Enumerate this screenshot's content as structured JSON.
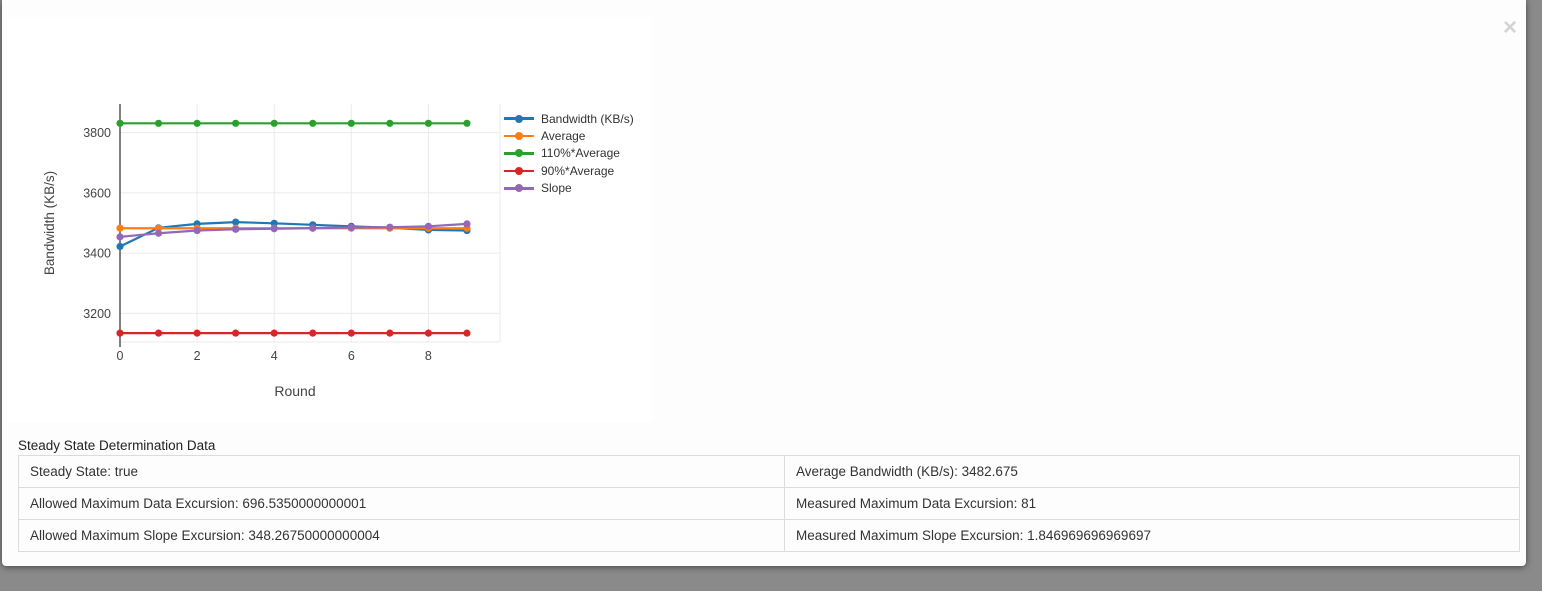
{
  "modal": {
    "close_icon": "×"
  },
  "chart_data": {
    "type": "line",
    "title": "",
    "xlabel": "Round",
    "ylabel": "Bandwidth (KB/s)",
    "x": [
      0,
      1,
      2,
      3,
      4,
      5,
      6,
      7,
      8,
      9
    ],
    "xticks": [
      0,
      2,
      4,
      6,
      8
    ],
    "yticks": [
      3200,
      3400,
      3600,
      3800
    ],
    "ylim": [
      3105,
      3895
    ],
    "grid": true,
    "legend_position": "right",
    "series": [
      {
        "name": "Bandwidth (KB/s)",
        "color": "#1f77b4",
        "values": [
          3422,
          3484,
          3497,
          3503,
          3499,
          3494,
          3489,
          3484,
          3477,
          3475
        ]
      },
      {
        "name": "Average",
        "color": "#ff7f0e",
        "values": [
          3482.675,
          3482.675,
          3482.675,
          3482.675,
          3482.675,
          3482.675,
          3482.675,
          3482.675,
          3482.675,
          3482.675
        ]
      },
      {
        "name": "110%*Average",
        "color": "#2ca02c",
        "values": [
          3830.9425,
          3830.9425,
          3830.9425,
          3830.9425,
          3830.9425,
          3830.9425,
          3830.9425,
          3830.9425,
          3830.9425,
          3830.9425
        ]
      },
      {
        "name": "90%*Average",
        "color": "#d62728",
        "values": [
          3134.4075,
          3134.4075,
          3134.4075,
          3134.4075,
          3134.4075,
          3134.4075,
          3134.4075,
          3134.4075,
          3134.4075,
          3134.4075
        ]
      },
      {
        "name": "Slope",
        "color": "#9467bd",
        "values": [
          3454,
          3466,
          3475,
          3479,
          3481,
          3483,
          3485,
          3486,
          3489,
          3497
        ]
      }
    ]
  },
  "steady_state": {
    "title": "Steady State Determination Data",
    "rows": [
      [
        "Steady State: true",
        "Average Bandwidth (KB/s): 3482.675"
      ],
      [
        "Allowed Maximum Data Excursion: 696.5350000000001",
        "Measured Maximum Data Excursion: 81"
      ],
      [
        "Allowed Maximum Slope Excursion: 348.26750000000004",
        "Measured Maximum Slope Excursion: 1.846969696969697"
      ]
    ]
  },
  "colors": {
    "backdrop": "#8a8a8a",
    "modal_background": "#fdfdfd",
    "chart_background": "#ffffff",
    "grid_line": "#ebebeb",
    "axis_line": "#3c3c3c",
    "axis_text": "#444444",
    "table_border": "#dcdcdc"
  }
}
